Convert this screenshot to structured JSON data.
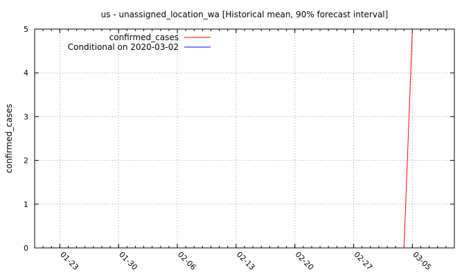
{
  "chart_data": {
    "type": "line",
    "title": "us - unassigned_location_wa [Historical mean, 90% forecast interval]",
    "xlabel": "",
    "ylabel": "confirmed_cases",
    "xlim": [
      "2020-01-20",
      "2020-03-10"
    ],
    "ylim": [
      0,
      5
    ],
    "x_ticks": [
      "01-23",
      "01-30",
      "02-06",
      "02-13",
      "02-20",
      "02-27",
      "03-05"
    ],
    "y_ticks": [
      "0",
      "1",
      "2",
      "3",
      "4",
      "5"
    ],
    "grid": true,
    "legend_position": "top-left",
    "series": [
      {
        "name": "confirmed_cases",
        "color": "#ff0000",
        "x": [
          "2020-03-04",
          "2020-03-05"
        ],
        "y": [
          0,
          5
        ]
      },
      {
        "name": "Conditional on 2020-03-02",
        "color": "#0000ff",
        "x": [],
        "y": []
      }
    ]
  }
}
